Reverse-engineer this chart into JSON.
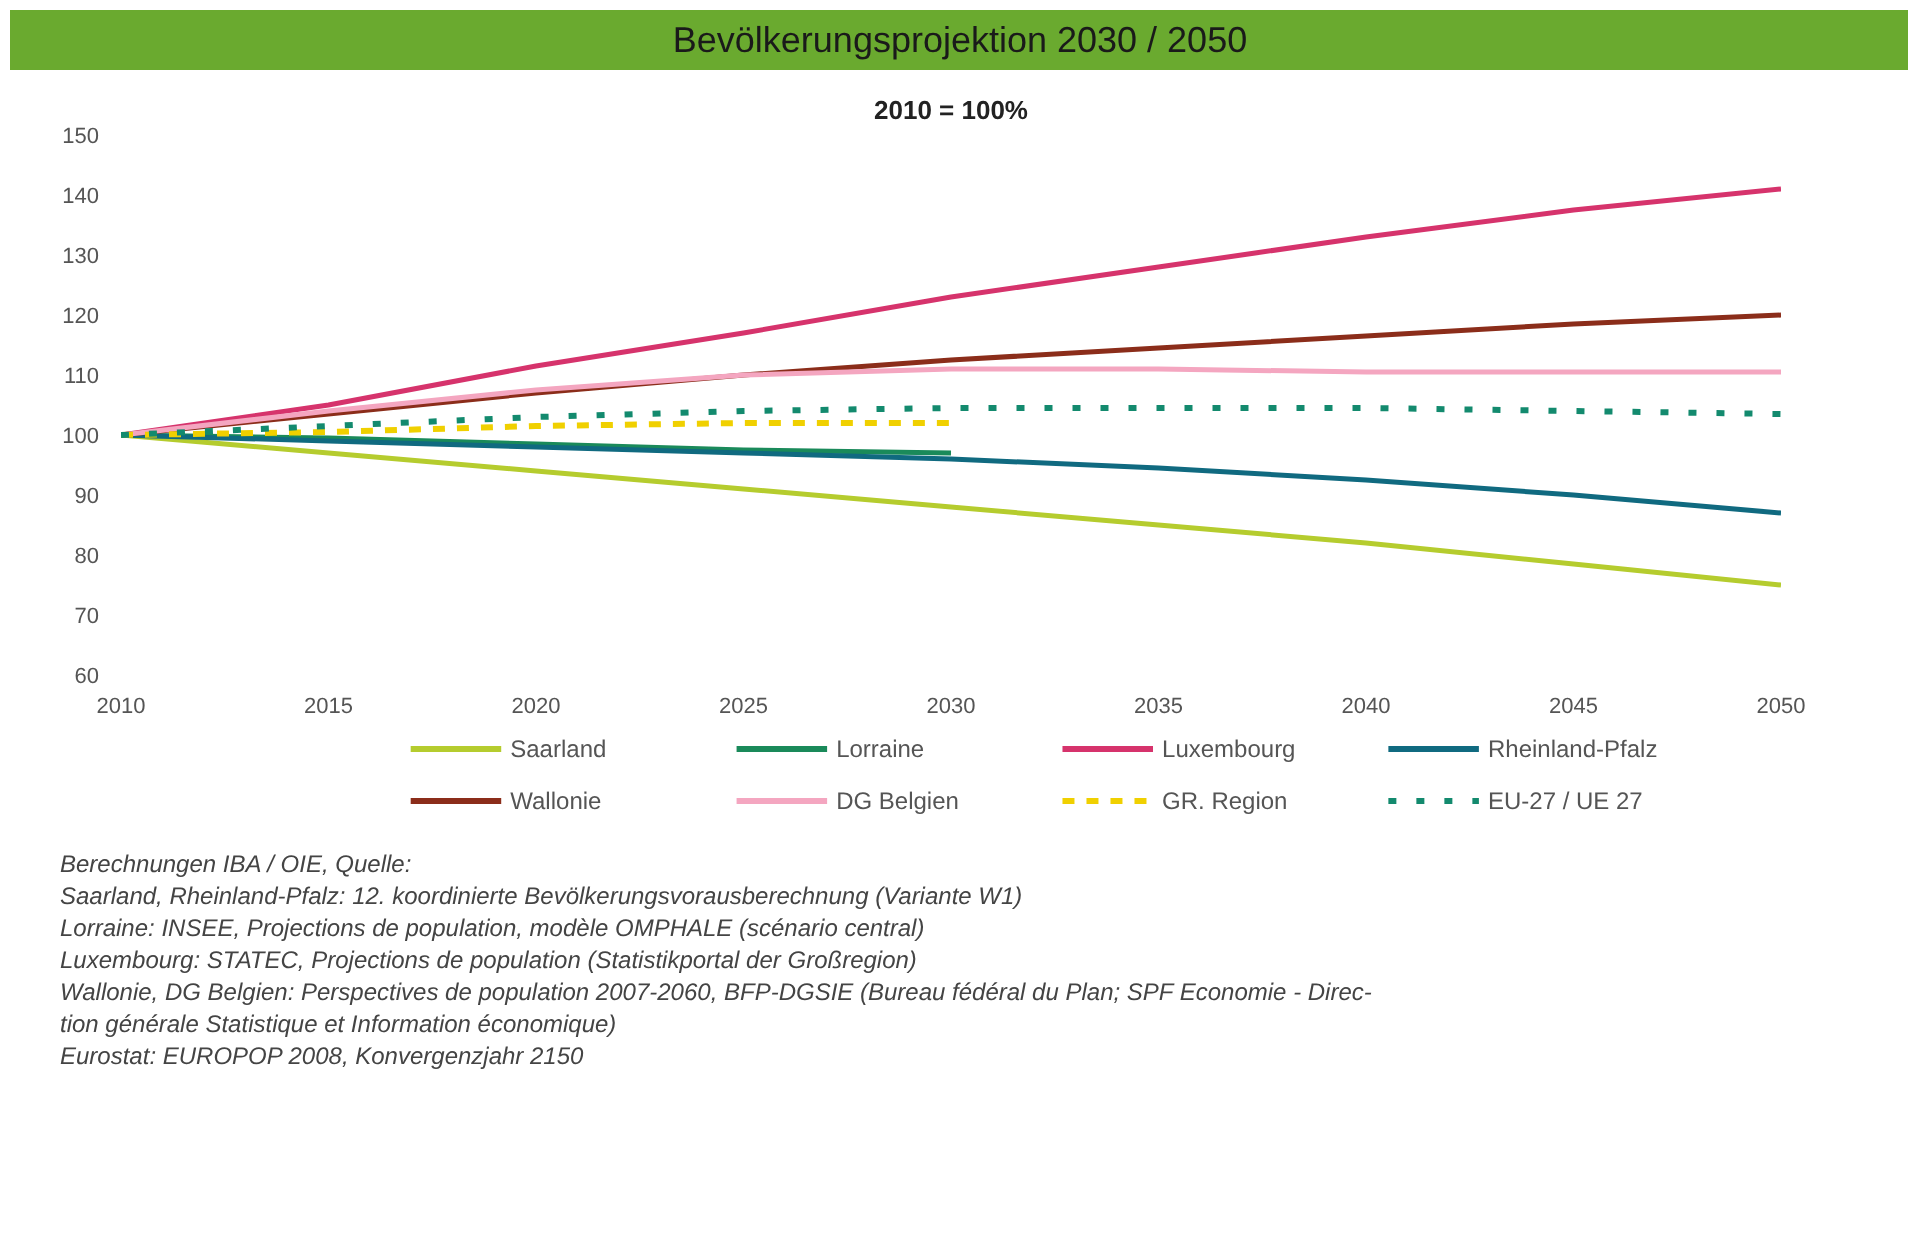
{
  "chart_data": {
    "type": "line",
    "title": "Bevölkerungsprojektion 2030 / 2050",
    "subtitle": "2010 = 100%",
    "x": [
      2010,
      2015,
      2020,
      2025,
      2030,
      2035,
      2040,
      2045,
      2050
    ],
    "xlim": [
      2010,
      2050
    ],
    "xticks": [
      2010,
      2015,
      2020,
      2025,
      2030,
      2035,
      2040,
      2045,
      2050
    ],
    "ylim": [
      60,
      150
    ],
    "yticks": [
      60,
      70,
      80,
      90,
      100,
      110,
      120,
      130,
      140,
      150
    ],
    "grid": false,
    "legend": "bottom",
    "marker": "none",
    "series": [
      {
        "name": "Saarland",
        "color": "#b5cc2e",
        "values": [
          100,
          97,
          94,
          91,
          88,
          85,
          82,
          78.5,
          75
        ]
      },
      {
        "name": "Lorraine",
        "color": "#1a8a5a",
        "values": [
          100,
          99.5,
          98.5,
          97.5,
          97,
          null,
          null,
          null,
          null
        ]
      },
      {
        "name": "Luxembourg",
        "color": "#d6336c",
        "values": [
          100,
          105,
          111.5,
          117,
          123,
          128,
          133,
          137.5,
          141
        ]
      },
      {
        "name": "Rheinland-Pfalz",
        "color": "#106a80",
        "values": [
          100,
          99,
          98,
          97,
          96,
          94.5,
          92.5,
          90,
          87
        ]
      },
      {
        "name": "Wallonie",
        "color": "#8b2d1a",
        "values": [
          100,
          103.5,
          107,
          110,
          112.5,
          114.5,
          116.5,
          118.5,
          120
        ]
      },
      {
        "name": "DG Belgien",
        "color": "#f4a6c0",
        "values": [
          100,
          104,
          107.5,
          110,
          111,
          111,
          110.5,
          110.5,
          110.5
        ]
      },
      {
        "name": "GR. Region",
        "color": "#f0d000",
        "line_style": "dashed",
        "values": [
          100,
          100.5,
          101.5,
          102,
          102,
          null,
          null,
          null,
          null
        ]
      },
      {
        "name": "EU-27 / UE 27",
        "color": "#138a6e",
        "line_style": "dotted",
        "values": [
          100,
          101.5,
          103,
          104,
          104.5,
          104.5,
          104.5,
          104,
          103.5
        ]
      }
    ],
    "annotations": [
      "Berechnungen IBA / OIE, Quelle:",
      "Saarland, Rheinland-Pfalz: 12. koordinierte Bevölkerungsvorausberechnung (Variante W1)",
      "Lorraine: INSEE, Projections de population, modèle OMPHALE (scénario central)",
      "Luxembourg: STATEC, Projections de population (Statistikportal der Großregion)",
      "Wallonie, DG Belgien: Perspectives de population 2007-2060, BFP-DGSIE (Bureau fédéral du Plan; SPF Economie - Direc-",
      "tion générale Statistique et Information économique)",
      "Eurostat: EUROPOP 2008, Konvergenzjahr 2150"
    ]
  }
}
